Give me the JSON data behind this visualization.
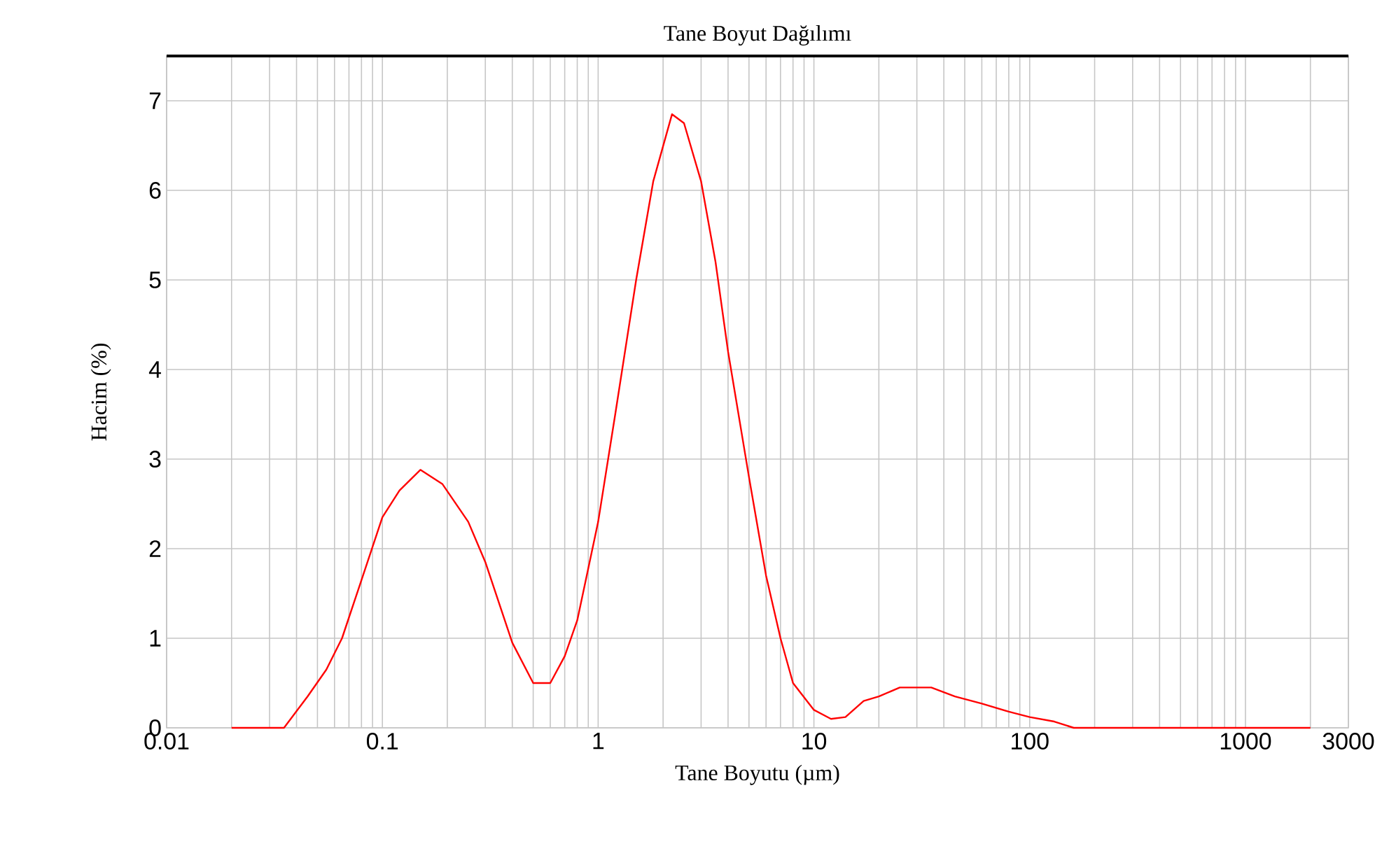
{
  "chart_data": {
    "type": "line",
    "title": "Tane Boyut Dağılımı",
    "xlabel": "Tane Boyutu (µm)",
    "ylabel": "Hacim (%)",
    "log": "x",
    "grid": true,
    "marker": "none",
    "line_style": "solid",
    "xlim": [
      0.01,
      3000
    ],
    "ylim": [
      0,
      7.5
    ],
    "xticks": [
      0.01,
      0.1,
      1,
      10,
      100,
      1000,
      3000
    ],
    "yticks": [
      0,
      1,
      2,
      3,
      4,
      5,
      6,
      7
    ],
    "series": [
      {
        "color": "#ff0000",
        "x": [
          0.02,
          0.035,
          0.045,
          0.055,
          0.065,
          0.08,
          0.1,
          0.12,
          0.15,
          0.19,
          0.25,
          0.3,
          0.4,
          0.5,
          0.6,
          0.7,
          0.8,
          1.0,
          1.2,
          1.5,
          1.8,
          2.2,
          2.5,
          3,
          3.5,
          4,
          5,
          6,
          7,
          8,
          10,
          12,
          14,
          17,
          20,
          25,
          35,
          45,
          60,
          80,
          100,
          130,
          160,
          2000
        ],
        "values": [
          0,
          0,
          0.35,
          0.65,
          1.0,
          1.65,
          2.35,
          2.65,
          2.88,
          2.72,
          2.3,
          1.85,
          0.95,
          0.5,
          0.5,
          0.8,
          1.2,
          2.3,
          3.5,
          5.0,
          6.1,
          6.85,
          6.75,
          6.1,
          5.2,
          4.2,
          2.8,
          1.7,
          1.0,
          0.5,
          0.2,
          0.1,
          0.12,
          0.3,
          0.35,
          0.45,
          0.45,
          0.35,
          0.27,
          0.18,
          0.12,
          0.07,
          0,
          0
        ]
      }
    ]
  }
}
